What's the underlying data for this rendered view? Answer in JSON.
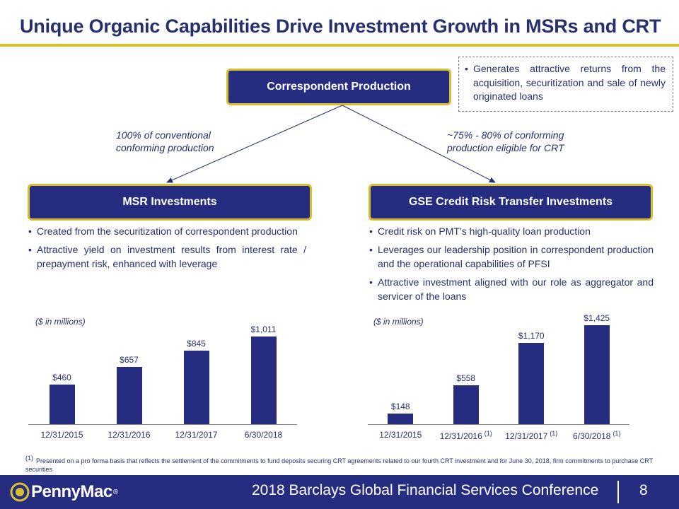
{
  "title": "Unique Organic Capabilities Drive Investment Growth in MSRs and CRT",
  "top_box": {
    "label": "Correspondent Production"
  },
  "callout": {
    "text": "Generates attractive returns from the acquisition, securitization and sale of newly originated loans"
  },
  "arrows": {
    "left_label_1": "100% of conventional",
    "left_label_2": "conforming production",
    "right_label_1": "~75% - 80% of conforming",
    "right_label_2": "production eligible for CRT"
  },
  "left_box": {
    "label": "MSR Investments"
  },
  "right_box": {
    "label": "GSE Credit Risk Transfer Investments"
  },
  "left_bullets": [
    "Created from the securitization of correspondent production",
    "Attractive yield on investment results from interest rate / prepayment risk, enhanced with leverage"
  ],
  "right_bullets": [
    "Credit risk on PMT’s high-quality loan production",
    "Leverages our leadership position in correspondent production and the operational capabilities of PFSI",
    "Attractive investment aligned with our role as aggregator and servicer of the loans"
  ],
  "chart_data": [
    {
      "type": "bar",
      "title": "MSR Investments",
      "ylabel": "($ in millions)",
      "categories": [
        "12/31/2015",
        "12/31/2016",
        "12/31/2017",
        "6/30/2018"
      ],
      "values": [
        460,
        657,
        845,
        1011
      ],
      "value_labels": [
        "$460",
        "$657",
        "$845",
        "$1,011"
      ],
      "category_notes": [
        "",
        "",
        "",
        ""
      ],
      "ylim": [
        0,
        1100
      ]
    },
    {
      "type": "bar",
      "title": "GSE Credit Risk Transfer Investments",
      "ylabel": "($ in millions)",
      "categories": [
        "12/31/2015",
        "12/31/2016",
        "12/31/2017",
        "6/30/2018"
      ],
      "values": [
        148,
        558,
        1170,
        1425
      ],
      "value_labels": [
        "$148",
        "$558",
        "$1,170",
        "$1,425"
      ],
      "category_notes": [
        "",
        "(1)",
        "(1)",
        "(1)"
      ],
      "ylim": [
        0,
        1530
      ]
    }
  ],
  "footnote": {
    "marker": "(1)",
    "text": "Presented on a pro forma basis that reflects the settlement of the commitments to fund deposits securing CRT agreements related to our fourth CRT investment and for June 30, 2018, firm commitments to purchase CRT securities"
  },
  "footer": {
    "logo_text": "PennyMac",
    "registered": "®",
    "conference": "2018 Barclays Global Financial Services Conference",
    "page": "8"
  },
  "colors": {
    "navy": "#262d80",
    "gold": "#d9bf2c",
    "text": "#26306f"
  }
}
